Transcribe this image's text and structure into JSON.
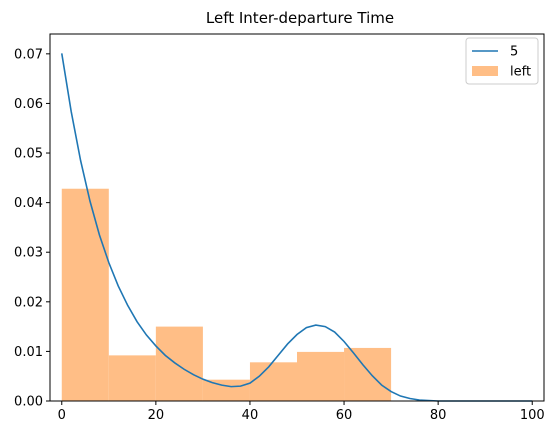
{
  "chart_data": {
    "type": "histogram_with_line",
    "title": "Left Inter-departure Time",
    "xlabel": "",
    "ylabel": "",
    "xlim": [
      -2.5,
      102.5
    ],
    "ylim": [
      0,
      0.074
    ],
    "x_ticks": [
      0,
      20,
      40,
      60,
      80,
      100
    ],
    "x_tick_labels": [
      "0",
      "20",
      "40",
      "60",
      "80",
      "100"
    ],
    "y_ticks": [
      0,
      0.01,
      0.02,
      0.03,
      0.04,
      0.05,
      0.06,
      0.07
    ],
    "y_tick_labels": [
      "0.00",
      "0.01",
      "0.02",
      "0.03",
      "0.04",
      "0.05",
      "0.06",
      "0.07"
    ],
    "grid": false,
    "legend_position": "top-right",
    "histogram": {
      "name": "left",
      "color": "#ffbe86",
      "bin_edges": [
        0,
        10,
        20,
        30,
        40,
        50,
        60,
        70
      ],
      "values": [
        0.0428,
        0.0092,
        0.015,
        0.0043,
        0.0078,
        0.0099,
        0.0107
      ]
    },
    "line": {
      "name": "5",
      "color": "#1f77b4",
      "x": [
        0,
        2,
        4,
        6,
        8,
        10,
        12,
        14,
        16,
        18,
        20,
        22,
        24,
        26,
        28,
        30,
        32,
        34,
        36,
        38,
        40,
        42,
        44,
        46,
        48,
        50,
        52,
        54,
        56,
        58,
        60,
        62,
        64,
        66,
        68,
        70,
        72,
        74,
        76,
        78,
        80,
        85,
        90,
        95,
        100
      ],
      "y": [
        0.0701,
        0.0584,
        0.0485,
        0.0403,
        0.0335,
        0.0279,
        0.0232,
        0.0193,
        0.016,
        0.0133,
        0.0111,
        0.0092,
        0.0077,
        0.0064,
        0.0053,
        0.0044,
        0.0037,
        0.0032,
        0.0029,
        0.003,
        0.0036,
        0.005,
        0.0069,
        0.0092,
        0.0115,
        0.0134,
        0.0148,
        0.0153,
        0.015,
        0.0139,
        0.012,
        0.0097,
        0.0073,
        0.0051,
        0.0032,
        0.0019,
        0.001,
        0.0005,
        0.0002,
        0.0001,
        0.0,
        0.0,
        0.0,
        0.0,
        0.0
      ]
    },
    "legend": [
      {
        "label": "5",
        "kind": "line"
      },
      {
        "label": "left",
        "kind": "patch"
      }
    ]
  }
}
